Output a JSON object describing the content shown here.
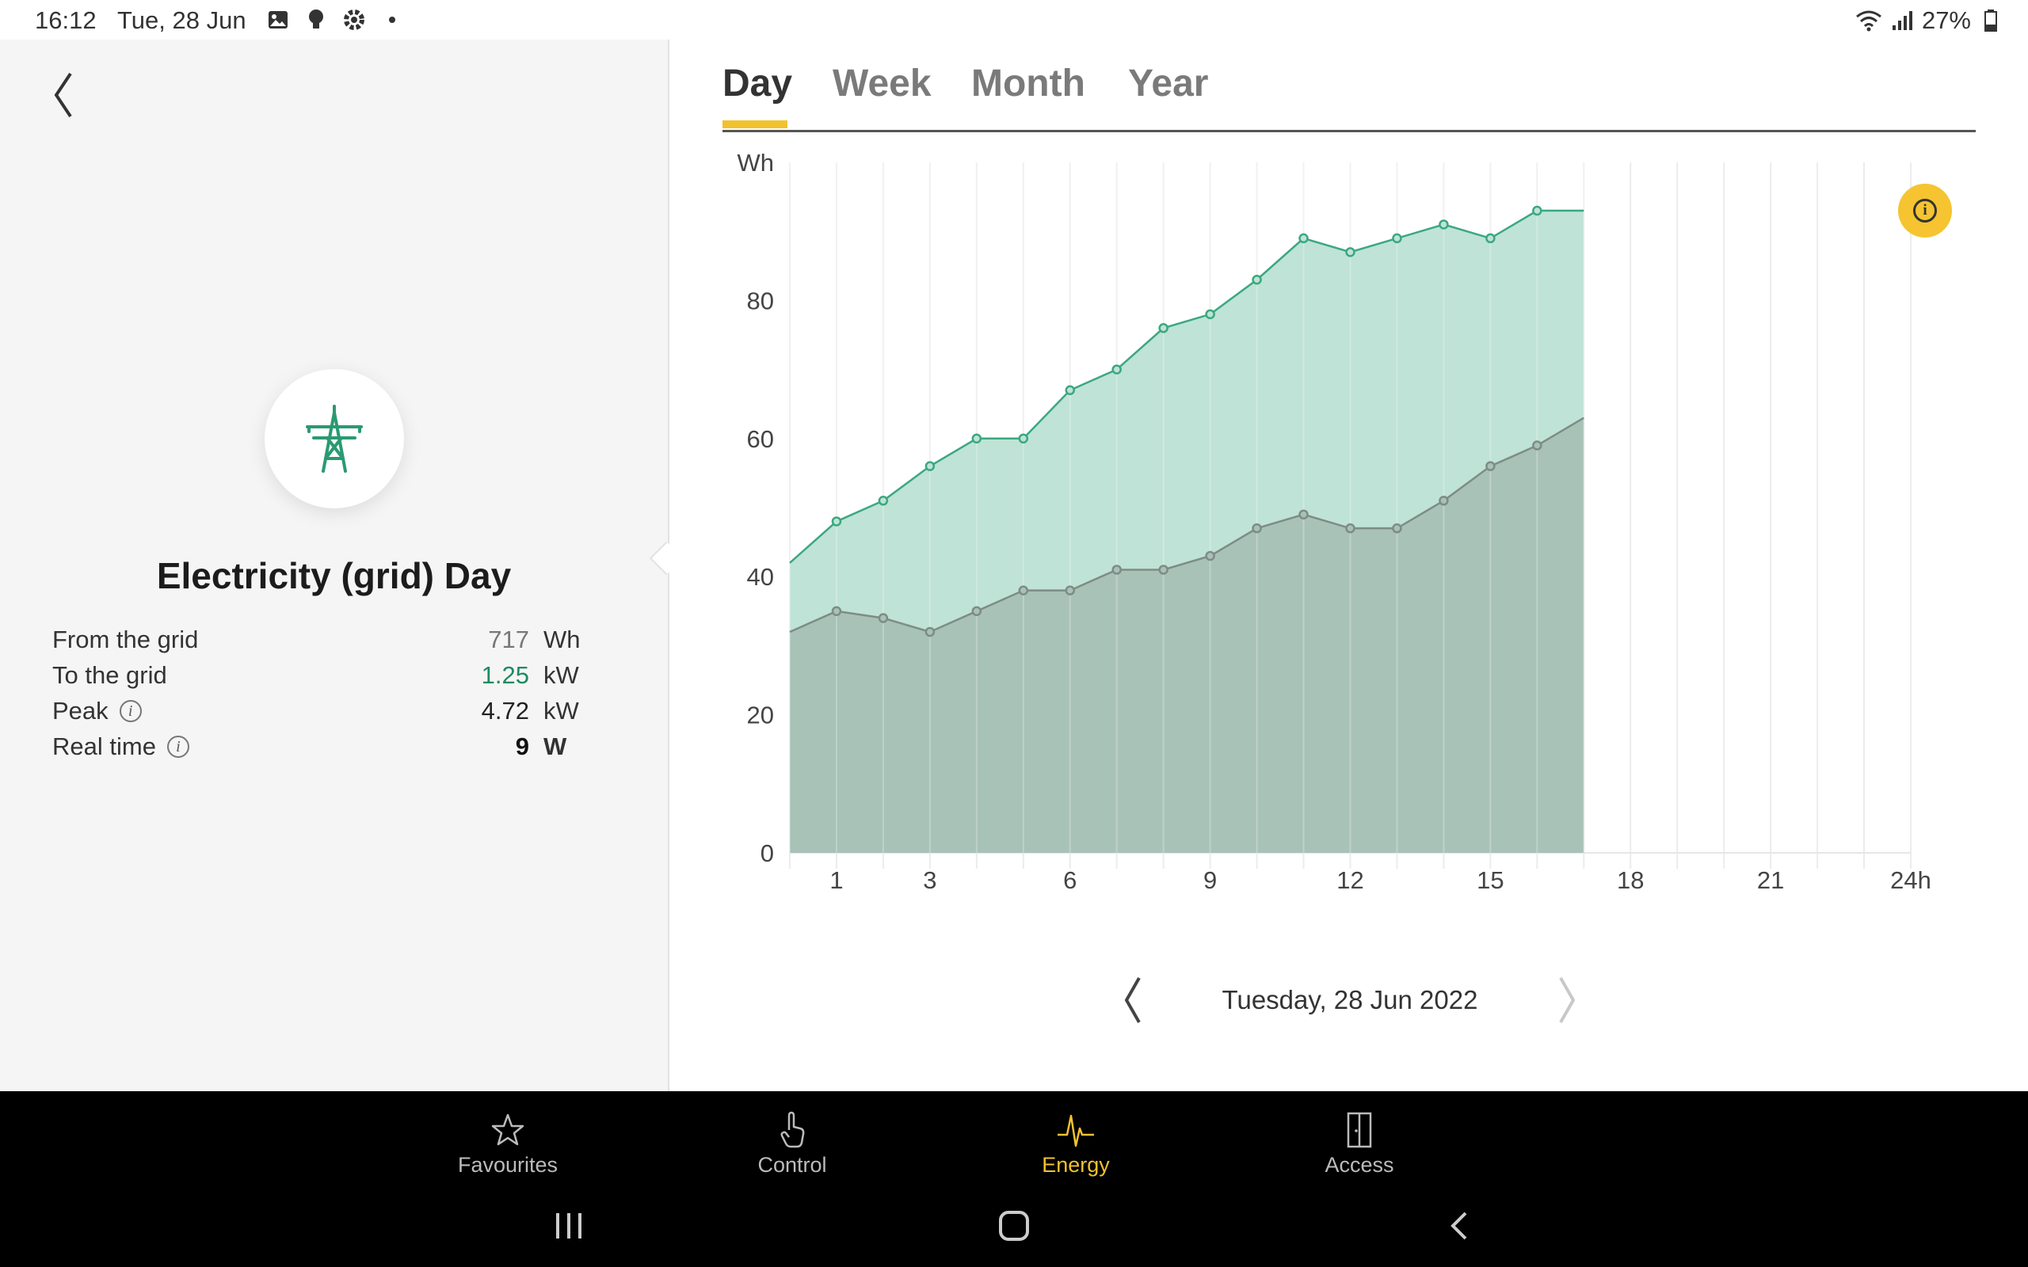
{
  "status_bar": {
    "time": "16:12",
    "date": "Tue, 28 Jun",
    "battery": "27%"
  },
  "left_panel": {
    "title": "Electricity (grid) Day",
    "icon": "power-pylon-icon",
    "stats": [
      {
        "label": "From the grid",
        "value": "717",
        "unit": "Wh",
        "value_color": "#777777",
        "info": false,
        "bold": false
      },
      {
        "label": "To the grid",
        "value": "1.25",
        "unit": "kW",
        "value_color": "#1e8a60",
        "info": false,
        "bold": false
      },
      {
        "label": "Peak",
        "value": "4.72",
        "unit": "kW",
        "value_color": "#222222",
        "info": true,
        "bold": false
      },
      {
        "label": "Real time",
        "value": "9",
        "unit": "W",
        "value_color": "#111111",
        "info": true,
        "bold": true
      }
    ]
  },
  "tabs": [
    {
      "label": "Day",
      "active": true
    },
    {
      "label": "Week",
      "active": false
    },
    {
      "label": "Month",
      "active": false
    },
    {
      "label": "Year",
      "active": false
    }
  ],
  "chart_data": {
    "type": "area",
    "ylabel": "Wh",
    "ylim": [
      0,
      100
    ],
    "y_ticks": [
      "0",
      "20",
      "40",
      "60",
      "80"
    ],
    "xlim": [
      0,
      24
    ],
    "x_ticks": [
      {
        "value": 1,
        "label": "1"
      },
      {
        "value": 3,
        "label": "3"
      },
      {
        "value": 6,
        "label": "6"
      },
      {
        "value": 9,
        "label": "9"
      },
      {
        "value": 12,
        "label": "12"
      },
      {
        "value": 15,
        "label": "15"
      },
      {
        "value": 18,
        "label": "18"
      },
      {
        "value": 21,
        "label": "21"
      },
      {
        "value": 24,
        "label": "24h"
      }
    ],
    "x": [
      0,
      1,
      2,
      3,
      4,
      5,
      6,
      7,
      8,
      9,
      10,
      11,
      12,
      13,
      14,
      15,
      16,
      17
    ],
    "series": [
      {
        "color": "#3aa880",
        "fill": "#bfe3d6",
        "values": [
          42,
          48,
          51,
          56,
          60,
          60,
          67,
          70,
          76,
          78,
          83,
          89,
          87,
          89,
          91,
          89,
          93,
          93
        ]
      },
      {
        "color": "#7e8c86",
        "fill": "#a8c2b8",
        "values": [
          32,
          35,
          34,
          32,
          35,
          38,
          38,
          41,
          41,
          43,
          47,
          49,
          47,
          47,
          51,
          56,
          59,
          63
        ]
      }
    ],
    "grid": true
  },
  "date_nav": {
    "label": "Tuesday, 28 Jun 2022"
  },
  "bottom_nav": [
    {
      "label": "Favourites",
      "icon": "star-icon",
      "active": false
    },
    {
      "label": "Control",
      "icon": "hand-pointer-icon",
      "active": false
    },
    {
      "label": "Energy",
      "icon": "energy-wave-icon",
      "active": true
    },
    {
      "label": "Access",
      "icon": "door-icon",
      "active": false
    }
  ]
}
